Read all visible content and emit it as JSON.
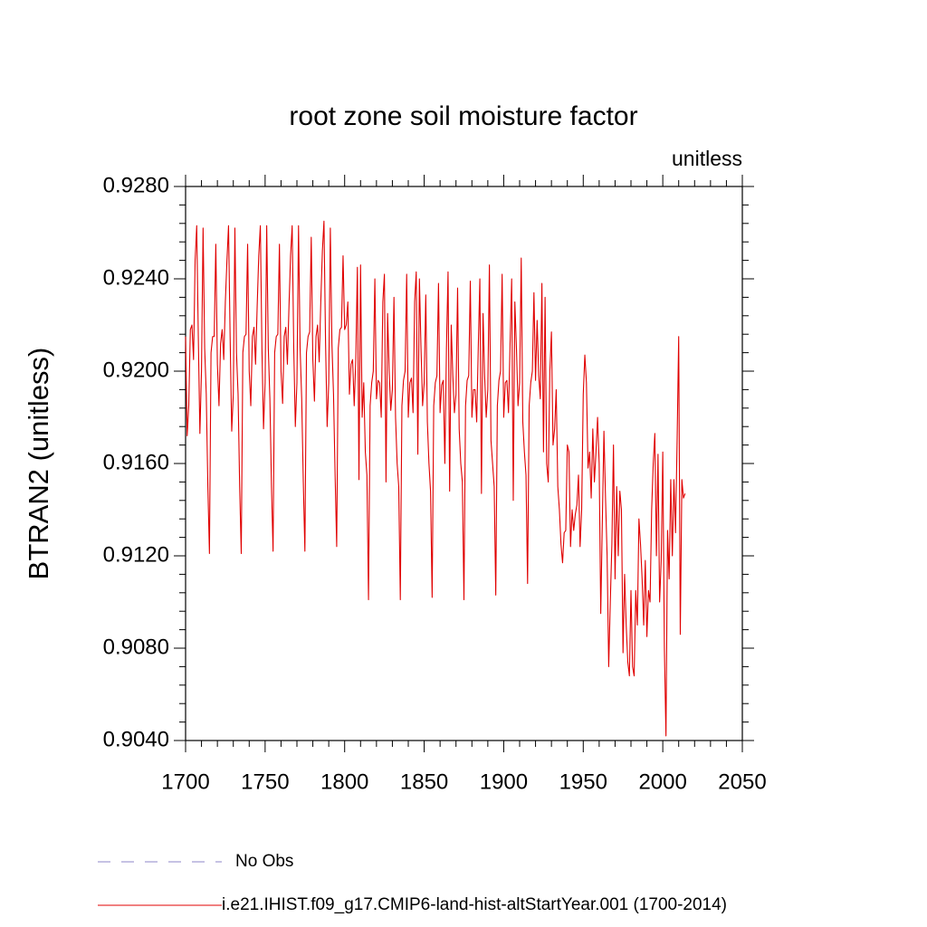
{
  "chart_data": {
    "type": "line",
    "title": "root zone soil moisture factor",
    "subtitle": "unitless",
    "y_label": "BTRAN2  (unitless)",
    "xlim": [
      1700,
      2050
    ],
    "xticks": [
      1700,
      1750,
      1800,
      1850,
      1900,
      1950,
      2000,
      2050
    ],
    "x_minor_divisions": 5,
    "ylim": [
      0.904,
      0.928
    ],
    "yticks": [
      {
        "value": 0.904,
        "label": "0.9040"
      },
      {
        "value": 0.908,
        "label": "0.9080"
      },
      {
        "value": 0.912,
        "label": "0.9120"
      },
      {
        "value": 0.916,
        "label": "0.9160"
      },
      {
        "value": 0.92,
        "label": "0.9200"
      },
      {
        "value": 0.924,
        "label": "0.9240"
      },
      {
        "value": 0.928,
        "label": "0.9280"
      }
    ],
    "y_minor_divisions": 5,
    "legend": [
      {
        "label": "No Obs",
        "color": "#8c84c8",
        "dashed": true
      }
    ],
    "x": [
      1700,
      1701,
      1702,
      1703,
      1704,
      1705,
      1706,
      1707,
      1708,
      1709,
      1710,
      1711,
      1712,
      1713,
      1714,
      1715,
      1716,
      1717,
      1718,
      1719,
      1720,
      1721,
      1722,
      1723,
      1724,
      1725,
      1726,
      1727,
      1728,
      1729,
      1730,
      1731,
      1732,
      1733,
      1734,
      1735,
      1736,
      1737,
      1738,
      1739,
      1740,
      1741,
      1742,
      1743,
      1744,
      1745,
      1746,
      1747,
      1748,
      1749,
      1750,
      1751,
      1752,
      1753,
      1754,
      1755,
      1756,
      1757,
      1758,
      1759,
      1760,
      1761,
      1762,
      1763,
      1764,
      1765,
      1766,
      1767,
      1768,
      1769,
      1770,
      1771,
      1772,
      1773,
      1774,
      1775,
      1776,
      1777,
      1778,
      1779,
      1780,
      1781,
      1782,
      1783,
      1784,
      1785,
      1786,
      1787,
      1788,
      1789,
      1790,
      1791,
      1792,
      1793,
      1794,
      1795,
      1796,
      1797,
      1798,
      1799,
      1800,
      1801,
      1802,
      1803,
      1804,
      1805,
      1806,
      1807,
      1808,
      1809,
      1810,
      1811,
      1812,
      1813,
      1814,
      1815,
      1816,
      1817,
      1818,
      1819,
      1820,
      1821,
      1822,
      1823,
      1824,
      1825,
      1826,
      1827,
      1828,
      1829,
      1830,
      1831,
      1832,
      1833,
      1834,
      1835,
      1836,
      1837,
      1838,
      1839,
      1840,
      1841,
      1842,
      1843,
      1844,
      1845,
      1846,
      1847,
      1848,
      1849,
      1850,
      1851,
      1852,
      1853,
      1854,
      1855,
      1856,
      1857,
      1858,
      1859,
      1860,
      1861,
      1862,
      1863,
      1864,
      1865,
      1866,
      1867,
      1868,
      1869,
      1870,
      1871,
      1872,
      1873,
      1874,
      1875,
      1876,
      1877,
      1878,
      1879,
      1880,
      1881,
      1882,
      1883,
      1884,
      1885,
      1886,
      1887,
      1888,
      1889,
      1890,
      1891,
      1892,
      1893,
      1894,
      1895,
      1896,
      1897,
      1898,
      1899,
      1900,
      1901,
      1902,
      1903,
      1904,
      1905,
      1906,
      1907,
      1908,
      1909,
      1910,
      1911,
      1912,
      1913,
      1914,
      1915,
      1916,
      1917,
      1918,
      1919,
      1920,
      1921,
      1922,
      1923,
      1924,
      1925,
      1926,
      1927,
      1928,
      1929,
      1930,
      1931,
      1932,
      1933,
      1934,
      1935,
      1936,
      1937,
      1938,
      1939,
      1940,
      1941,
      1942,
      1943,
      1944,
      1945,
      1946,
      1947,
      1948,
      1949,
      1950,
      1951,
      1952,
      1953,
      1954,
      1955,
      1956,
      1957,
      1958,
      1959,
      1960,
      1961,
      1962,
      1963,
      1964,
      1965,
      1966,
      1967,
      1968,
      1969,
      1970,
      1971,
      1972,
      1973,
      1974,
      1975,
      1976,
      1977,
      1978,
      1979,
      1980,
      1981,
      1982,
      1983,
      1984,
      1985,
      1986,
      1987,
      1988,
      1989,
      1990,
      1991,
      1992,
      1993,
      1994,
      1995,
      1996,
      1997,
      1998,
      1999,
      2000,
      2001,
      2002,
      2003,
      2004,
      2005,
      2006,
      2007,
      2008,
      2009,
      2010,
      2011,
      2012,
      2013,
      2014
    ],
    "series": [
      {
        "name": "i.e21.IHIST.f09_g17.CMIP6-land-hist-altStartYear.001 (1700-2014)",
        "color": "#e00000",
        "values": [
          0.9215,
          0.9172,
          0.9185,
          0.9218,
          0.922,
          0.9205,
          0.9248,
          0.9263,
          0.9215,
          0.9173,
          0.92,
          0.9262,
          0.921,
          0.919,
          0.915,
          0.9121,
          0.9208,
          0.9215,
          0.9215,
          0.9255,
          0.9203,
          0.9185,
          0.9212,
          0.9218,
          0.9205,
          0.923,
          0.9248,
          0.9263,
          0.9215,
          0.9174,
          0.919,
          0.9262,
          0.9208,
          0.919,
          0.915,
          0.9121,
          0.9208,
          0.9215,
          0.9216,
          0.9255,
          0.92,
          0.9185,
          0.9215,
          0.9219,
          0.9203,
          0.9228,
          0.925,
          0.9263,
          0.921,
          0.9175,
          0.9195,
          0.9263,
          0.921,
          0.9188,
          0.915,
          0.9122,
          0.9208,
          0.9215,
          0.9216,
          0.9255,
          0.92,
          0.9186,
          0.9215,
          0.9219,
          0.9203,
          0.9228,
          0.925,
          0.9263,
          0.921,
          0.9176,
          0.9195,
          0.9263,
          0.921,
          0.9188,
          0.9152,
          0.9122,
          0.9208,
          0.9215,
          0.9217,
          0.9258,
          0.9205,
          0.9187,
          0.9215,
          0.922,
          0.9204,
          0.923,
          0.9252,
          0.9265,
          0.9212,
          0.9176,
          0.9195,
          0.9262,
          0.9212,
          0.919,
          0.9155,
          0.9124,
          0.921,
          0.9218,
          0.9219,
          0.925,
          0.9218,
          0.922,
          0.923,
          0.919,
          0.9203,
          0.9205,
          0.9185,
          0.9205,
          0.9245,
          0.9153,
          0.9246,
          0.918,
          0.9195,
          0.9165,
          0.9155,
          0.9101,
          0.9185,
          0.9195,
          0.92,
          0.924,
          0.9188,
          0.9196,
          0.9195,
          0.918,
          0.923,
          0.9242,
          0.9152,
          0.9225,
          0.92,
          0.9183,
          0.9192,
          0.9232,
          0.918,
          0.916,
          0.915,
          0.9101,
          0.9185,
          0.9196,
          0.92,
          0.9242,
          0.918,
          0.9195,
          0.9197,
          0.9182,
          0.923,
          0.9243,
          0.9164,
          0.924,
          0.921,
          0.9185,
          0.9195,
          0.9233,
          0.9178,
          0.916,
          0.9148,
          0.9102,
          0.9185,
          0.9195,
          0.9198,
          0.9238,
          0.9182,
          0.9194,
          0.9196,
          0.916,
          0.921,
          0.9243,
          0.9148,
          0.922,
          0.9198,
          0.9182,
          0.919,
          0.9236,
          0.9175,
          0.916,
          0.9152,
          0.9101,
          0.9185,
          0.9196,
          0.9198,
          0.9239,
          0.918,
          0.9192,
          0.9192,
          0.9178,
          0.921,
          0.924,
          0.9147,
          0.9225,
          0.9198,
          0.918,
          0.9192,
          0.9246,
          0.917,
          0.916,
          0.915,
          0.9103,
          0.9185,
          0.9196,
          0.92,
          0.9242,
          0.918,
          0.9195,
          0.9196,
          0.9182,
          0.9212,
          0.924,
          0.9144,
          0.923,
          0.921,
          0.9185,
          0.9195,
          0.9249,
          0.9178,
          0.9165,
          0.9155,
          0.9108,
          0.9185,
          0.9195,
          0.92,
          0.9234,
          0.9196,
          0.9222,
          0.9198,
          0.9188,
          0.9238,
          0.9165,
          0.9232,
          0.916,
          0.9152,
          0.92,
          0.9217,
          0.9168,
          0.9175,
          0.9192,
          0.915,
          0.914,
          0.9125,
          0.9117,
          0.913,
          0.9131,
          0.9168,
          0.9165,
          0.9124,
          0.914,
          0.9131,
          0.9138,
          0.9142,
          0.9155,
          0.9124,
          0.914,
          0.919,
          0.9207,
          0.9195,
          0.9158,
          0.9165,
          0.9145,
          0.9175,
          0.9152,
          0.9165,
          0.918,
          0.916,
          0.9095,
          0.9135,
          0.9174,
          0.9145,
          0.912,
          0.9072,
          0.91,
          0.9125,
          0.9168,
          0.911,
          0.915,
          0.912,
          0.9148,
          0.914,
          0.9078,
          0.9112,
          0.909,
          0.9074,
          0.9068,
          0.9105,
          0.9072,
          0.9068,
          0.9105,
          0.909,
          0.9136,
          0.9125,
          0.911,
          0.909,
          0.9118,
          0.9085,
          0.9105,
          0.91,
          0.914,
          0.916,
          0.9173,
          0.912,
          0.9164,
          0.91,
          0.9118,
          0.9165,
          0.908,
          0.9042,
          0.9131,
          0.911,
          0.9153,
          0.912,
          0.9153,
          0.913,
          0.917,
          0.9215,
          0.9086,
          0.9153,
          0.9145,
          0.9147
        ]
      }
    ]
  }
}
